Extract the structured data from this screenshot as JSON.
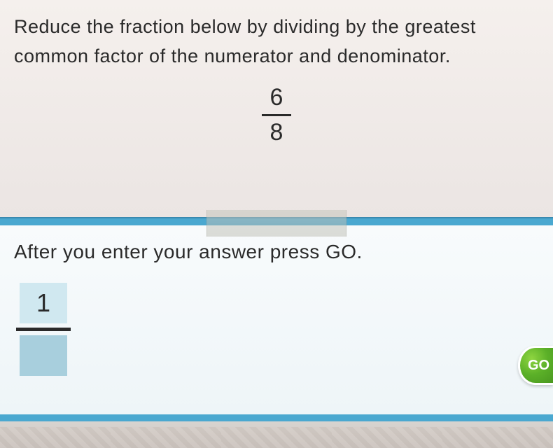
{
  "question": {
    "prompt": "Reduce the fraction below by dividing by the greatest common factor of the numerator and denominator.",
    "fraction": {
      "numerator": "6",
      "denominator": "8"
    }
  },
  "answer": {
    "prompt": "After you enter your answer press GO.",
    "numerator_value": "1",
    "denominator_value": ""
  },
  "buttons": {
    "go_label": "GO"
  },
  "colors": {
    "panel_bg": "#f5f0ed",
    "answer_bg": "#f8fbfc",
    "divider": "#4aa8d0",
    "input_bg": "#a8cfdd",
    "input_active_bg": "#d0e8f0",
    "go_button": "#5bb028",
    "text": "#2a2a2a"
  },
  "typography": {
    "font_family": "Comic Sans MS",
    "question_fontsize": 27,
    "answer_fontsize": 28,
    "fraction_fontsize": 34
  }
}
